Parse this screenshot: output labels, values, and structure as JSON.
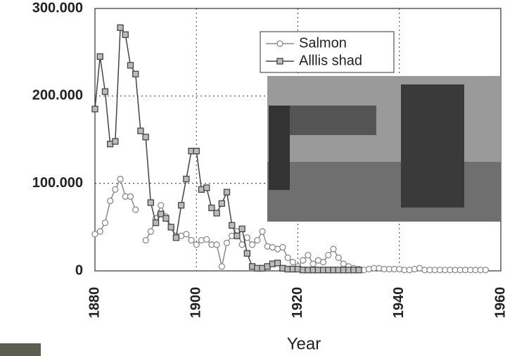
{
  "chart_data": {
    "type": "line",
    "xlabel": "Year",
    "x": [
      1880,
      1881,
      1882,
      1883,
      1884,
      1885,
      1886,
      1887,
      1888,
      1889,
      1890,
      1891,
      1892,
      1893,
      1894,
      1895,
      1896,
      1897,
      1898,
      1899,
      1900,
      1901,
      1902,
      1903,
      1904,
      1905,
      1906,
      1907,
      1908,
      1909,
      1910,
      1911,
      1912,
      1913,
      1914,
      1915,
      1916,
      1917,
      1918,
      1919,
      1920,
      1921,
      1922,
      1923,
      1924,
      1925,
      1926,
      1927,
      1928,
      1929,
      1930,
      1931,
      1932,
      1933,
      1934,
      1935,
      1936,
      1937,
      1938,
      1939,
      1940,
      1941,
      1942,
      1943,
      1944,
      1945,
      1946,
      1947,
      1948,
      1949,
      1950,
      1951,
      1952,
      1953,
      1954,
      1955,
      1956,
      1957
    ],
    "series": [
      {
        "name": "Salmon",
        "color": "#8a8a8a",
        "marker": "circle",
        "values": [
          42000,
          45000,
          55000,
          80000,
          93000,
          105000,
          85000,
          85000,
          70000,
          null,
          35000,
          45000,
          60000,
          75000,
          62000,
          50000,
          40000,
          40000,
          42000,
          35000,
          30000,
          35000,
          36000,
          30000,
          30000,
          5000,
          32000,
          40000,
          45000,
          30000,
          38000,
          30000,
          35000,
          45000,
          28000,
          27000,
          25000,
          27000,
          15000,
          10000,
          5000,
          12000,
          18000,
          8000,
          12000,
          10000,
          18000,
          25000,
          15000,
          8000,
          5000,
          3000,
          2000,
          1000,
          2000,
          3000,
          3000,
          2000,
          2000,
          2000,
          2000,
          1000,
          1000,
          2000,
          3000,
          1000,
          1000,
          1000,
          1000,
          1000,
          1000,
          1000,
          1000,
          1000,
          1000,
          1000,
          1000,
          1000
        ]
      },
      {
        "name": "Alllis shad",
        "color": "#444444",
        "marker": "square",
        "values": [
          185000,
          245000,
          205000,
          145000,
          148000,
          278000,
          270000,
          235000,
          225000,
          160000,
          153000,
          78000,
          55000,
          65000,
          60000,
          50000,
          38000,
          75000,
          105000,
          137000,
          137000,
          93000,
          95000,
          72000,
          66000,
          77000,
          90000,
          52000,
          40000,
          48000,
          20000,
          5000,
          3000,
          3000,
          5000,
          8000,
          9000,
          3000,
          2000,
          2000,
          2000,
          1000,
          1000,
          1000,
          1000,
          1000,
          1000,
          1000,
          1000,
          1000,
          1000,
          1000,
          1000,
          null,
          null,
          null,
          null,
          null,
          null,
          null,
          null,
          null,
          null,
          null,
          null,
          null,
          null,
          null,
          null,
          null,
          null,
          null,
          null,
          null,
          null,
          null,
          null,
          null
        ]
      }
    ],
    "xlim": [
      1880,
      1960
    ],
    "xticks": [
      1880,
      1900,
      1920,
      1940,
      1960
    ],
    "ylim": [
      0,
      300000
    ],
    "yticks": [
      0,
      {
        "value": 100000,
        "label": "100.000"
      },
      {
        "value": 200000,
        "label": "200.000"
      },
      {
        "value": 300000,
        "label": "300.000"
      }
    ],
    "grid": true
  }
}
